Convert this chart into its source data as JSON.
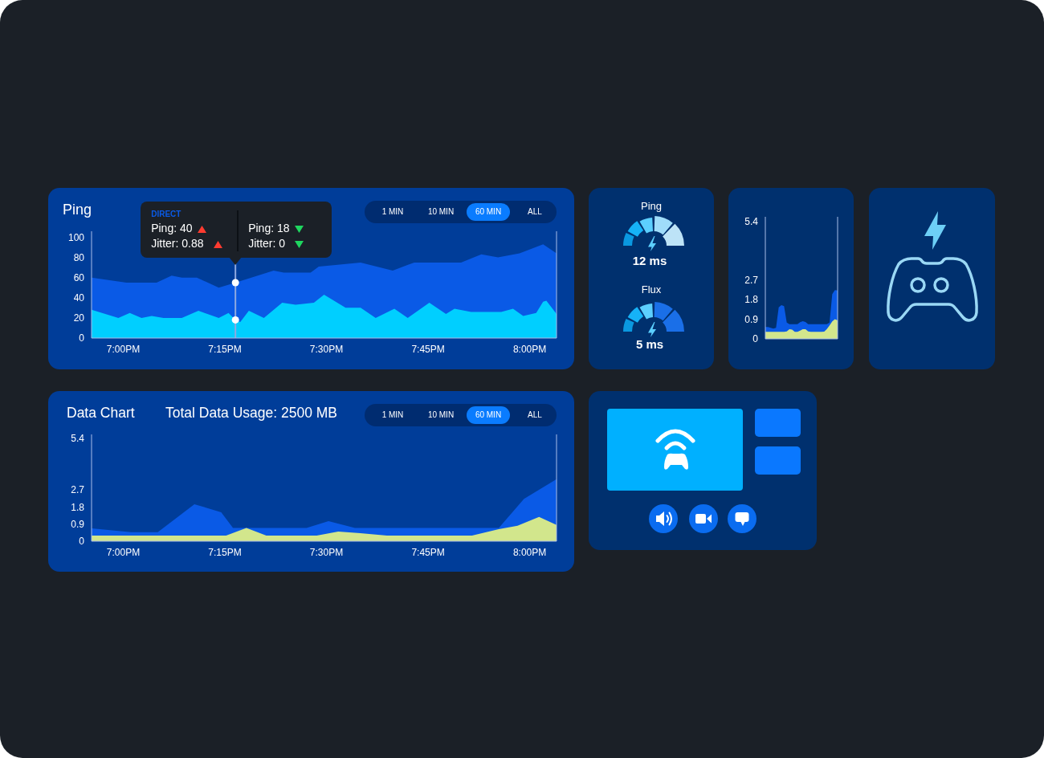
{
  "chart_data": [
    {
      "type": "area",
      "title": "Ping",
      "xlim": [
        18.922,
        20.066
      ],
      "xticks": [
        {
          "value": 19,
          "label": "7:00PM"
        },
        {
          "value": 19.25,
          "label": "7:15PM"
        },
        {
          "value": 19.5,
          "label": "7:30PM"
        },
        {
          "value": 19.75,
          "label": "7:45PM"
        },
        {
          "value": 20,
          "label": "8:00PM"
        }
      ],
      "ylim": [
        0,
        106
      ],
      "yticks": [
        0,
        20,
        40,
        60,
        80,
        100
      ],
      "series": [
        {
          "name": "DIRECT",
          "color": "#0a5ae6",
          "x": [
            18.922,
            19.008,
            19.082,
            19.119,
            19.144,
            19.181,
            19.235,
            19.276,
            19.37,
            19.395,
            19.461,
            19.481,
            19.584,
            19.663,
            19.716,
            19.831,
            19.881,
            19.922,
            19.975,
            20.033,
            20.066
          ],
          "values": [
            60,
            55,
            55,
            62,
            60,
            60,
            50,
            55,
            67,
            65,
            65,
            71,
            75,
            67,
            75,
            75,
            83,
            80,
            84,
            93,
            84
          ]
        },
        {
          "color": "#00cfff",
          "x": [
            18.922,
            18.988,
            19.016,
            19.045,
            19.07,
            19.099,
            19.144,
            19.185,
            19.235,
            19.259,
            19.276,
            19.288,
            19.309,
            19.346,
            19.391,
            19.424,
            19.469,
            19.494,
            19.547,
            19.584,
            19.621,
            19.667,
            19.7,
            19.753,
            19.794,
            19.815,
            19.856,
            19.93,
            19.959,
            19.984,
            20.016,
            20.033,
            20.041,
            20.066
          ],
          "values": [
            28,
            20,
            25,
            20,
            22,
            20,
            20,
            27,
            20,
            25,
            18,
            16,
            27,
            20,
            35,
            33,
            35,
            43,
            30,
            30,
            20,
            29,
            20,
            35,
            24,
            29,
            26,
            26,
            29,
            22,
            25,
            36,
            37,
            24
          ]
        },
        {
          "type": "scatter",
          "color": "#ffffff",
          "marker": "circle",
          "x": [
            19.276,
            19.276
          ],
          "values": [
            55,
            18
          ]
        }
      ],
      "ref_lines": [
        {
          "axis": "x",
          "value": 19.276,
          "color": "#8fa9e0"
        }
      ],
      "annotations": [
        "1 MIN",
        "10 MIN",
        "60 MIN",
        "ALL",
        "Ping: 40",
        "Jitter: 0.88",
        "Ping: 18",
        "Jitter: 0"
      ]
    },
    {
      "type": "other",
      "title": "Ping",
      "annotations": [
        "12 ms"
      ]
    },
    {
      "type": "other",
      "title": "Flux",
      "annotations": [
        "5 ms"
      ]
    },
    {
      "type": "area",
      "categories": [
        null,
        null,
        null,
        null,
        null,
        null,
        null,
        null,
        null,
        null,
        null,
        null,
        null,
        null,
        null,
        null,
        null,
        null,
        null,
        null,
        null,
        null,
        null,
        null,
        null,
        null,
        null,
        null
      ],
      "ylim": [
        0,
        5.6
      ],
      "yticks": [
        0,
        0.9,
        1.8,
        2.7,
        5.4
      ],
      "tick_labels": "y",
      "series": [
        {
          "color": "#0a5ae6",
          "values": [
            0.54,
            0.54,
            0.51,
            0.47,
            0.51,
            1.45,
            1.55,
            1.5,
            0.75,
            0.67,
            0.67,
            0.67,
            0.67,
            0.76,
            0.81,
            0.77,
            0.67,
            0.67,
            0.67,
            0.67,
            0.67,
            0.67,
            0.67,
            0.67,
            0.75,
            2.05,
            2.24,
            2.22
          ]
        },
        {
          "color": "#d2e68c",
          "values": [
            0.32,
            0.32,
            0.32,
            0.32,
            0.32,
            0.32,
            0.32,
            0.32,
            0.34,
            0.44,
            0.42,
            0.32,
            0.32,
            0.38,
            0.44,
            0.44,
            0.34,
            0.32,
            0.32,
            0.32,
            0.32,
            0.32,
            0.33,
            0.45,
            0.62,
            0.8,
            0.9,
            0.85
          ]
        }
      ]
    },
    {
      "type": "area",
      "title": "Data Chart",
      "subtitle": "Total Data Usage: 2500 MB",
      "xlim": [
        18.922,
        20.066
      ],
      "xticks": [
        {
          "value": 19,
          "label": "7:00PM"
        },
        {
          "value": 19.25,
          "label": "7:15PM"
        },
        {
          "value": 19.5,
          "label": "7:30PM"
        },
        {
          "value": 19.75,
          "label": "7:45PM"
        },
        {
          "value": 20,
          "label": "8:00PM"
        }
      ],
      "ylim": [
        0,
        5.6
      ],
      "yticks": [
        0,
        0.9,
        1.8,
        2.7,
        5.4
      ],
      "series": [
        {
          "color": "#0a5ae6",
          "x": [
            18.922,
            19.019,
            19.085,
            19.175,
            19.241,
            19.27,
            19.451,
            19.505,
            19.57,
            19.924,
            19.986,
            20.066
          ],
          "values": [
            0.67,
            0.47,
            0.47,
            1.94,
            1.52,
            0.69,
            0.69,
            1.05,
            0.69,
            0.69,
            2.22,
            3.25
          ]
        },
        {
          "color": "#d2e68c",
          "x": [
            18.922,
            19.253,
            19.303,
            19.352,
            19.476,
            19.529,
            19.583,
            19.649,
            19.858,
            19.924,
            19.97,
            20.023,
            20.066
          ],
          "values": [
            0.3,
            0.3,
            0.69,
            0.3,
            0.3,
            0.51,
            0.42,
            0.3,
            0.3,
            0.63,
            0.81,
            1.27,
            0.85
          ]
        }
      ],
      "annotations": [
        "1 MIN",
        "10 MIN",
        "60 MIN",
        "ALL"
      ]
    }
  ]
}
